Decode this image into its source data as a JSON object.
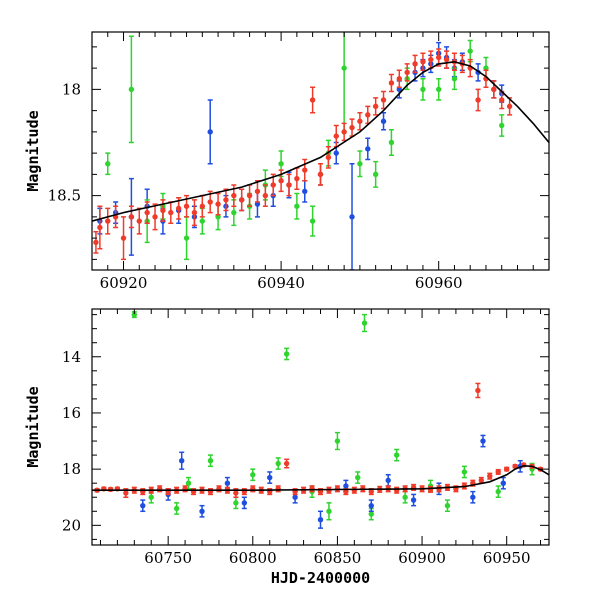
{
  "chart_data": [
    {
      "type": "scatter",
      "title": "",
      "xlabel": "",
      "ylabel": "Magnitude",
      "xlim": [
        60916,
        60974
      ],
      "ylim": [
        18.85,
        17.73
      ],
      "x_ticks": [
        60920,
        60940,
        60960
      ],
      "y_ticks": [
        18,
        18.5
      ],
      "y_tick_labels": [
        "18",
        "18.5"
      ],
      "grid": false,
      "legend": "none",
      "series": [
        {
          "name": "blue",
          "color": "#1f4fe0",
          "x": [
            60917,
            60919,
            60921,
            60923,
            60925,
            60927,
            60929,
            60931,
            60933,
            60935,
            60937,
            60939,
            60941,
            60943,
            60945,
            60947,
            60949,
            60951,
            60953,
            60955,
            60957,
            60958,
            60959,
            60960,
            60961,
            60962,
            60963,
            60965,
            60967,
            60968
          ],
          "y": [
            18.62,
            18.58,
            18.6,
            18.55,
            18.62,
            18.57,
            18.6,
            18.2,
            18.55,
            18.52,
            18.54,
            18.5,
            18.45,
            18.48,
            18.4,
            18.3,
            18.6,
            18.28,
            18.15,
            18.0,
            17.92,
            17.9,
            17.88,
            17.83,
            17.85,
            17.9,
            17.87,
            17.92,
            18.0,
            18.02
          ],
          "err": [
            0.06,
            0.05,
            0.18,
            0.08,
            0.06,
            0.06,
            0.05,
            0.15,
            0.05,
            0.05,
            0.06,
            0.05,
            0.06,
            0.05,
            0.05,
            0.05,
            0.25,
            0.05,
            0.04,
            0.04,
            0.04,
            0.04,
            0.04,
            0.05,
            0.05,
            0.04,
            0.04,
            0.04,
            0.04,
            0.04
          ]
        },
        {
          "name": "green",
          "color": "#2fd42f",
          "x": [
            60918,
            60921,
            60923,
            60925,
            60928,
            60930,
            60932,
            60934,
            60936,
            60938,
            60940,
            60942,
            60944,
            60946,
            60948,
            60950,
            60952,
            60954,
            60956,
            60958,
            60960,
            60962,
            60964,
            60966,
            60968
          ],
          "y": [
            18.35,
            18.0,
            18.62,
            18.55,
            18.7,
            18.62,
            18.6,
            18.58,
            18.55,
            18.45,
            18.35,
            18.55,
            18.62,
            18.3,
            17.9,
            18.35,
            18.4,
            18.25,
            17.95,
            18.0,
            18.0,
            17.95,
            17.82,
            17.9,
            18.17
          ],
          "err": [
            0.05,
            0.25,
            0.1,
            0.06,
            0.1,
            0.06,
            0.06,
            0.06,
            0.06,
            0.07,
            0.06,
            0.06,
            0.07,
            0.06,
            0.3,
            0.06,
            0.06,
            0.06,
            0.05,
            0.05,
            0.05,
            0.05,
            0.05,
            0.05,
            0.05
          ]
        },
        {
          "name": "red",
          "color": "#f03a2a",
          "x": [
            60916.5,
            60917,
            60918,
            60919,
            60920,
            60921,
            60922,
            60923,
            60924,
            60925,
            60926,
            60927,
            60928,
            60929,
            60930,
            60931,
            60932,
            60933,
            60934,
            60935,
            60936,
            60937,
            60938,
            60939,
            60940,
            60941,
            60942,
            60943,
            60944,
            60945,
            60946,
            60947,
            60948,
            60949,
            60950,
            60951,
            60952,
            60953,
            60954,
            60955,
            60956,
            60957,
            60958,
            60959,
            60960,
            60961,
            60962,
            60963,
            60964,
            60965,
            60966,
            60967,
            60968,
            60969
          ],
          "y": [
            18.72,
            18.65,
            18.62,
            18.6,
            18.7,
            18.6,
            18.62,
            18.58,
            18.6,
            18.57,
            18.58,
            18.56,
            18.55,
            18.58,
            18.55,
            18.53,
            18.54,
            18.52,
            18.5,
            18.52,
            18.5,
            18.48,
            18.5,
            18.45,
            18.43,
            18.45,
            18.42,
            18.38,
            18.05,
            18.4,
            18.32,
            18.22,
            18.2,
            18.18,
            18.15,
            18.12,
            18.08,
            18.05,
            17.97,
            17.95,
            17.92,
            17.88,
            17.87,
            17.86,
            17.85,
            17.86,
            17.87,
            17.88,
            17.9,
            18.05,
            17.95,
            18.0,
            18.05,
            18.08
          ],
          "err": [
            0.05,
            0.1,
            0.06,
            0.05,
            0.1,
            0.05,
            0.06,
            0.05,
            0.06,
            0.05,
            0.05,
            0.05,
            0.05,
            0.06,
            0.05,
            0.05,
            0.05,
            0.05,
            0.05,
            0.05,
            0.05,
            0.05,
            0.05,
            0.05,
            0.05,
            0.05,
            0.05,
            0.05,
            0.06,
            0.05,
            0.05,
            0.05,
            0.04,
            0.04,
            0.04,
            0.04,
            0.04,
            0.04,
            0.04,
            0.04,
            0.04,
            0.04,
            0.04,
            0.04,
            0.04,
            0.04,
            0.04,
            0.04,
            0.04,
            0.05,
            0.04,
            0.04,
            0.04,
            0.04
          ]
        },
        {
          "name": "model",
          "color": "#000000",
          "type": "line",
          "x": [
            60916,
            60920,
            60925,
            60930,
            60935,
            60940,
            60945,
            60950,
            60953,
            60956,
            60958,
            60960,
            60962,
            60964,
            60966,
            60968,
            60970,
            60972,
            60974
          ],
          "y": [
            18.62,
            18.58,
            18.54,
            18.5,
            18.46,
            18.4,
            18.32,
            18.2,
            18.1,
            17.98,
            17.92,
            17.88,
            17.87,
            17.89,
            17.94,
            18.01,
            18.08,
            18.16,
            18.25
          ]
        }
      ]
    },
    {
      "type": "scatter",
      "title": "",
      "xlabel": "HJD-2400000",
      "ylabel": "Magnitude",
      "xlim": [
        60705,
        60975
      ],
      "ylim": [
        20.7,
        12.3
      ],
      "x_ticks": [
        60750,
        60800,
        60850,
        60900,
        60950
      ],
      "y_ticks": [
        14,
        16,
        18,
        20
      ],
      "grid": false,
      "legend": "none",
      "series": [
        {
          "name": "green",
          "color": "#2fd42f",
          "x": [
            60730,
            60740,
            60755,
            60762,
            60775,
            60790,
            60800,
            60815,
            60820,
            60835,
            60845,
            60850,
            60862,
            60866,
            60870,
            60885,
            60890,
            60905,
            60915,
            60925,
            60945,
            60965
          ],
          "y": [
            12.5,
            19.0,
            19.4,
            18.5,
            17.7,
            19.2,
            18.2,
            17.8,
            13.9,
            18.8,
            19.5,
            17.0,
            18.3,
            12.8,
            19.6,
            17.5,
            19.0,
            18.6,
            19.3,
            18.1,
            18.8,
            18.0
          ],
          "err": [
            0.1,
            0.2,
            0.2,
            0.2,
            0.2,
            0.2,
            0.2,
            0.2,
            0.2,
            0.2,
            0.3,
            0.3,
            0.2,
            0.3,
            0.2,
            0.2,
            0.2,
            0.2,
            0.2,
            0.2,
            0.2,
            0.2
          ]
        },
        {
          "name": "blue",
          "color": "#1f4fe0",
          "x": [
            60735,
            60750,
            60758,
            60770,
            60785,
            60795,
            60810,
            60825,
            60840,
            60855,
            60870,
            60880,
            60895,
            60910,
            60930,
            60936,
            60948,
            60958
          ],
          "y": [
            19.3,
            18.9,
            17.7,
            19.5,
            18.5,
            19.2,
            18.3,
            19.0,
            19.8,
            18.6,
            19.3,
            18.4,
            19.1,
            18.7,
            19.0,
            17.0,
            18.5,
            17.9
          ],
          "err": [
            0.2,
            0.2,
            0.3,
            0.2,
            0.2,
            0.2,
            0.2,
            0.2,
            0.3,
            0.2,
            0.2,
            0.2,
            0.2,
            0.2,
            0.2,
            0.2,
            0.2,
            0.2
          ]
        },
        {
          "name": "red",
          "color": "#f03a2a",
          "x": [
            60708,
            60712,
            60716,
            60720,
            60725,
            60730,
            60735,
            60740,
            60745,
            60750,
            60755,
            60760,
            60765,
            60770,
            60775,
            60780,
            60785,
            60790,
            60795,
            60800,
            60805,
            60810,
            60815,
            60820,
            60825,
            60830,
            60835,
            60840,
            60845,
            60850,
            60855,
            60860,
            60865,
            60870,
            60875,
            60880,
            60885,
            60890,
            60895,
            60900,
            60905,
            60910,
            60915,
            60920,
            60925,
            60930,
            60933,
            60935,
            60940,
            60945,
            60950,
            60955,
            60960,
            60965,
            60970
          ],
          "y": [
            18.75,
            18.7,
            18.72,
            18.7,
            18.85,
            18.75,
            18.8,
            18.75,
            18.7,
            18.8,
            18.75,
            18.7,
            18.8,
            18.75,
            18.8,
            18.7,
            18.75,
            18.85,
            18.8,
            18.7,
            18.75,
            18.8,
            18.7,
            17.8,
            18.8,
            18.75,
            18.7,
            18.8,
            18.75,
            18.7,
            18.8,
            18.75,
            18.7,
            18.8,
            18.72,
            18.7,
            18.75,
            18.7,
            18.65,
            18.7,
            18.72,
            18.7,
            18.65,
            18.7,
            18.6,
            18.5,
            15.2,
            18.4,
            18.25,
            18.1,
            18.0,
            17.9,
            17.85,
            17.9,
            18.0
          ],
          "err": [
            0.05,
            0.05,
            0.05,
            0.05,
            0.15,
            0.1,
            0.1,
            0.1,
            0.1,
            0.1,
            0.1,
            0.1,
            0.1,
            0.1,
            0.1,
            0.1,
            0.1,
            0.15,
            0.1,
            0.1,
            0.1,
            0.1,
            0.1,
            0.15,
            0.1,
            0.1,
            0.1,
            0.1,
            0.1,
            0.1,
            0.1,
            0.1,
            0.1,
            0.1,
            0.1,
            0.1,
            0.1,
            0.1,
            0.1,
            0.1,
            0.1,
            0.1,
            0.1,
            0.1,
            0.1,
            0.1,
            0.25,
            0.1,
            0.1,
            0.08,
            0.06,
            0.05,
            0.05,
            0.05,
            0.05
          ]
        },
        {
          "name": "model",
          "color": "#000000",
          "type": "line",
          "x": [
            60705,
            60800,
            60900,
            60925,
            60940,
            60950,
            60955,
            60960,
            60965,
            60970,
            60975
          ],
          "y": [
            18.75,
            18.75,
            18.7,
            18.62,
            18.45,
            18.2,
            18.0,
            17.88,
            17.9,
            18.02,
            18.2
          ]
        }
      ]
    }
  ]
}
